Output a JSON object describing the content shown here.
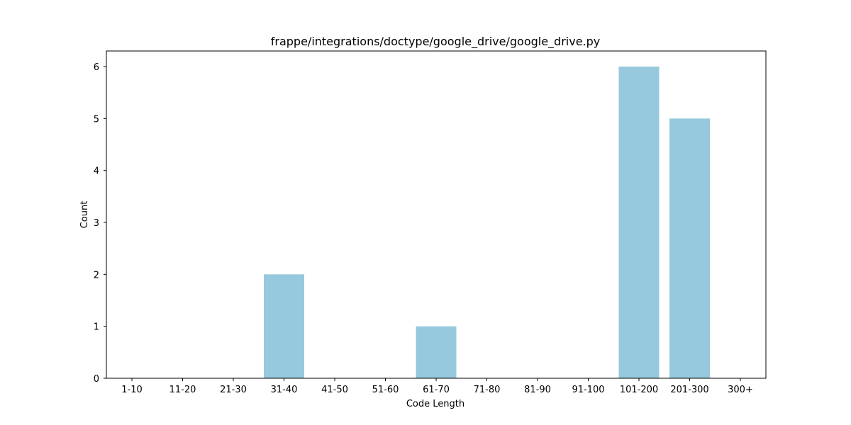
{
  "chart_data": {
    "type": "bar",
    "title": "frappe/integrations/doctype/google_drive/google_drive.py",
    "xlabel": "Code Length",
    "ylabel": "Count",
    "categories": [
      "1-10",
      "11-20",
      "21-30",
      "31-40",
      "41-50",
      "51-60",
      "61-70",
      "71-80",
      "81-90",
      "91-100",
      "101-200",
      "201-300",
      "300+"
    ],
    "values": [
      0,
      0,
      0,
      2,
      0,
      0,
      1,
      0,
      0,
      0,
      6,
      5,
      0
    ],
    "ylim": [
      0,
      6.3
    ],
    "yticks": [
      "0",
      "1",
      "2",
      "3",
      "4",
      "5",
      "6"
    ],
    "grid": false,
    "legend": "none",
    "bar_color": "#96c9dd",
    "axis_color": "#000000"
  }
}
